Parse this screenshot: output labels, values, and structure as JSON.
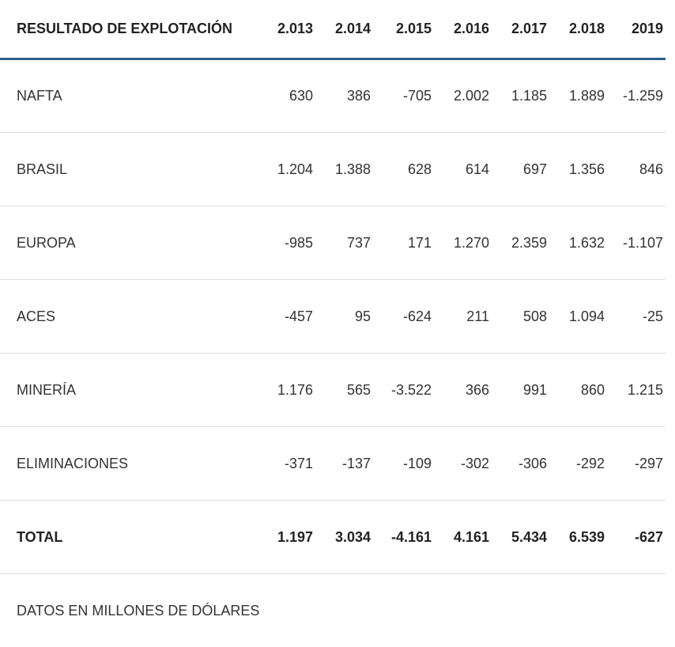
{
  "table": {
    "header": [
      "RESULTADO DE EXPLOTACIÓN",
      "2.013",
      "2.014",
      "2.015",
      "2.016",
      "2.017",
      "2.018",
      "2019"
    ],
    "rows": [
      {
        "label": "NAFTA",
        "values": [
          "630",
          "386",
          "-705",
          "2.002",
          "1.185",
          "1.889",
          "-1.259"
        ]
      },
      {
        "label": "BRASIL",
        "values": [
          "1.204",
          "1.388",
          "628",
          "614",
          "697",
          "1.356",
          "846"
        ]
      },
      {
        "label": "EUROPA",
        "values": [
          "-985",
          "737",
          "171",
          "1.270",
          "2.359",
          "1.632",
          "-1.107"
        ]
      },
      {
        "label": "ACES",
        "values": [
          "-457",
          "95",
          "-624",
          "211",
          "508",
          "1.094",
          "-25"
        ]
      },
      {
        "label": "MINERÍA",
        "values": [
          "1.176",
          "565",
          "-3.522",
          "366",
          "991",
          "860",
          "1.215"
        ]
      },
      {
        "label": "ELIMINACIONES",
        "values": [
          "-371",
          "-137",
          "-109",
          "-302",
          "-306",
          "-292",
          "-297"
        ]
      },
      {
        "label": "TOTAL",
        "values": [
          "1.197",
          "3.034",
          "-4.161",
          "4.161",
          "5.434",
          "6.539",
          "-627"
        ]
      }
    ],
    "footnote": "DATOS EN MILLONES DE DÓLARES"
  },
  "colors": {
    "header_rule": "#2e5f8a",
    "row_divider": "#dddddd"
  }
}
